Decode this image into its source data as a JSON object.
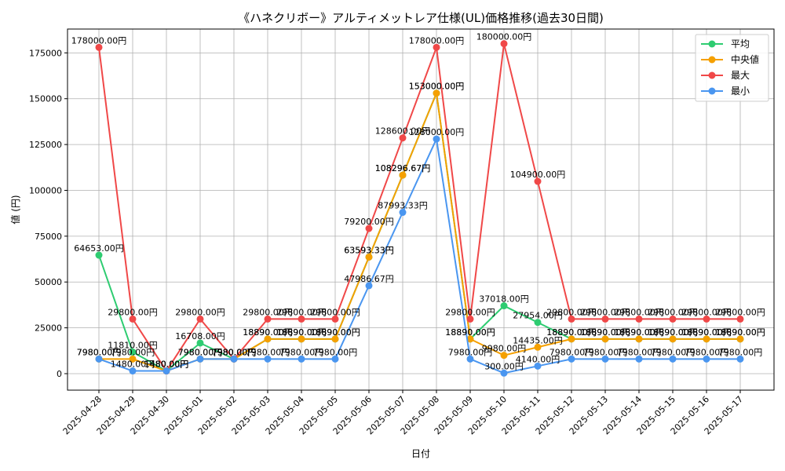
{
  "colors": {
    "avg": "#2ecc71",
    "median": "#f5a000",
    "max": "#f04848",
    "min": "#4a96f0",
    "grid": "#b0b0b0"
  },
  "chart_data": {
    "type": "line",
    "title": "《ハネクリボー》アルティメットレア仕様(UL)価格推移(過去30日間)",
    "xlabel": "日付",
    "ylabel": "値 (円)",
    "ylim": [
      -9000,
      188000
    ],
    "yticks": [
      0,
      25000,
      50000,
      75000,
      100000,
      125000,
      150000,
      175000
    ],
    "ytick_labels": [
      "0",
      "25000",
      "50000",
      "75000",
      "100000",
      "125000",
      "150000",
      "175000"
    ],
    "grid": true,
    "legend_position": "top-right",
    "categories": [
      "2025-04-28",
      "2025-04-29",
      "2025-04-30",
      "2025-05-01",
      "2025-05-02",
      "2025-05-03",
      "2025-05-04",
      "2025-05-05",
      "2025-05-06",
      "2025-05-07",
      "2025-05-08",
      "2025-05-09",
      "2025-05-10",
      "2025-05-11",
      "2025-05-12",
      "2025-05-13",
      "2025-05-14",
      "2025-05-15",
      "2025-05-16",
      "2025-05-17"
    ],
    "series": [
      {
        "name": "平均",
        "key": "avg",
        "values": [
          64653,
          11810,
          1480,
          16708,
          7980,
          18890,
          18890,
          18890,
          63593.33,
          108296.67,
          153000,
          18890,
          37018,
          27954,
          18890,
          18890,
          18890,
          18890,
          18890,
          18890
        ],
        "labels": [
          "64653.00円",
          "11810.00円",
          "1480.00円",
          "16708.00円",
          "7980.00円",
          "18890.00円",
          "18890.00円",
          "18890.00円",
          "63593.33円",
          "108296.67円",
          "153000.00円",
          "18890.00円",
          "37018.00円",
          "27954.00円",
          "18890.00円",
          "18890.00円",
          "18890.00円",
          "18890.00円",
          "18890.00円",
          "18890.00円"
        ]
      },
      {
        "name": "中央値",
        "key": "median",
        "values": [
          7980,
          7980,
          1480,
          7980,
          7980,
          18890,
          18890,
          18890,
          63593.33,
          108296.67,
          153000,
          18890,
          9980,
          14435,
          18890,
          18890,
          18890,
          18890,
          18890,
          18890
        ],
        "labels": [
          "7980.00円",
          "7980.00円",
          "1480.00円",
          "7980.00円",
          "7980.00円",
          "18890.00円",
          "18890.00円",
          "18890.00円",
          "63593.33円",
          "108296.67円",
          "153000.00円",
          "18890.00円",
          "9980.00円",
          "14435.00円",
          "18890.00円",
          "18890.00円",
          "18890.00円",
          "18890.00円",
          "18890.00円",
          "18890.00円"
        ]
      },
      {
        "name": "最大",
        "key": "max",
        "values": [
          178000,
          29800,
          1480,
          29800,
          7980,
          29800,
          29800,
          29800,
          79200,
          128600,
          178000,
          29800,
          180000,
          104900,
          29800,
          29800,
          29800,
          29800,
          29800,
          29800
        ],
        "labels": [
          "178000.00円",
          "29800.00円",
          "1480.00円",
          "29800.00円",
          "7980.00円",
          "29800.00円",
          "29800.00円",
          "29800.00円",
          "79200.00円",
          "128600.00円",
          "178000.00円",
          "29800.00円",
          "180000.00円",
          "104900.00円",
          "29800.00円",
          "29800.00円",
          "29800.00円",
          "29800.00円",
          "29800.00円",
          "29800.00円"
        ]
      },
      {
        "name": "最小",
        "key": "min",
        "values": [
          7980,
          1480,
          1480,
          7980,
          7980,
          7980,
          7980,
          7980,
          47986.67,
          87993.33,
          128000,
          7980,
          300,
          4140,
          7980,
          7980,
          7980,
          7980,
          7980,
          7980
        ],
        "labels": [
          "7980.00円",
          "1480.00円",
          "1480.00円",
          "7980.00円",
          "7980.00円",
          "7980.00円",
          "7980.00円",
          "7980.00円",
          "47986.67円",
          "87993.33円",
          "128000.00円",
          "7980.00円",
          "300.00円",
          "4140.00円",
          "7980.00円",
          "7980.00円",
          "7980.00円",
          "7980.00円",
          "7980.00円",
          "7980.00円"
        ]
      }
    ]
  }
}
